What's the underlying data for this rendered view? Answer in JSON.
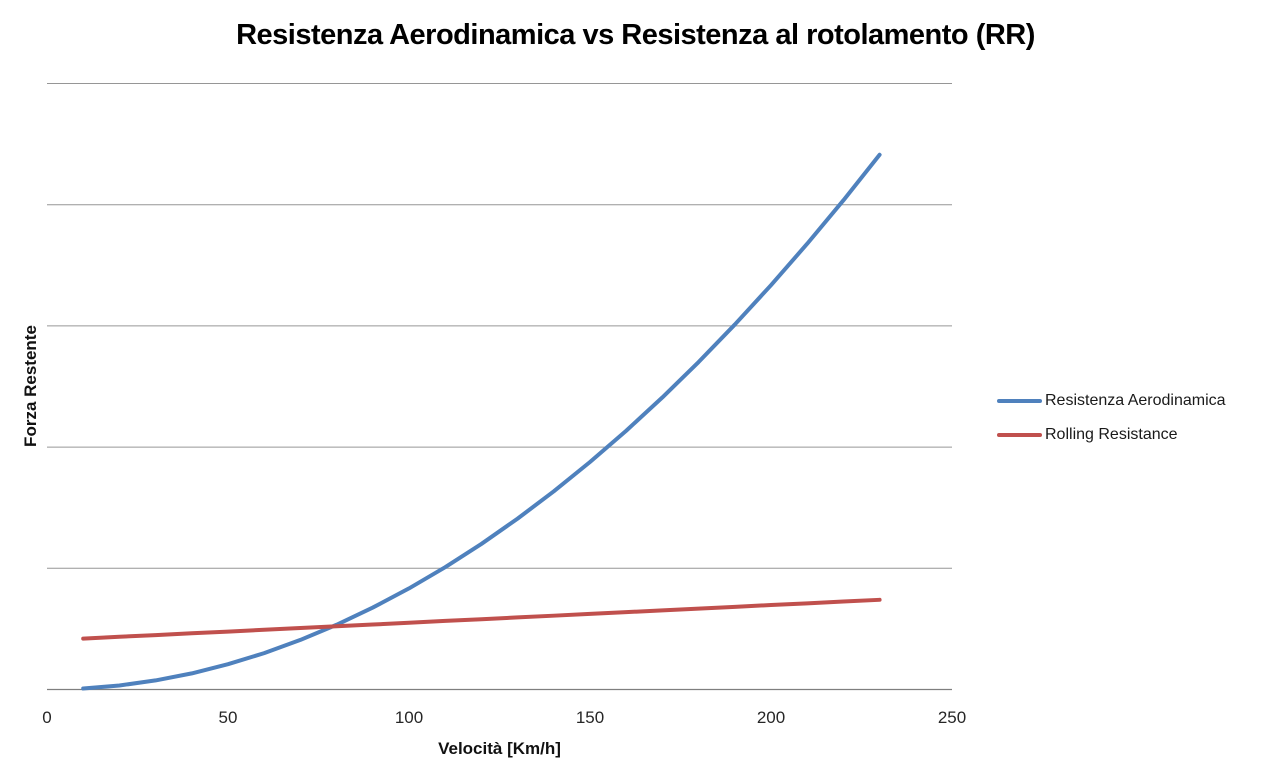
{
  "chart_data": {
    "type": "line",
    "title": "Resistenza Aerodinamica vs Resistenza al rotolamento (RR)",
    "xlabel": "Velocità [Km/h]",
    "ylabel": "Forza Restente",
    "xlim": [
      0,
      250
    ],
    "ylim": [
      0,
      5
    ],
    "x_ticks": [
      0,
      50,
      100,
      150,
      200,
      250
    ],
    "y_tick_labels": "hidden",
    "y_gridline_step": 1,
    "grid": "horizontal",
    "legend_position": "right",
    "x": [
      10,
      20,
      30,
      40,
      50,
      60,
      70,
      80,
      90,
      100,
      110,
      120,
      130,
      140,
      150,
      160,
      170,
      180,
      190,
      200,
      210,
      220,
      230
    ],
    "series": [
      {
        "name": "Resistenza Aerodinamica",
        "color": "#4F81BD",
        "values": [
          0.008,
          0.033,
          0.075,
          0.133,
          0.209,
          0.3,
          0.409,
          0.534,
          0.676,
          0.834,
          1.009,
          1.201,
          1.41,
          1.635,
          1.877,
          2.135,
          2.41,
          2.702,
          3.011,
          3.336,
          3.678,
          4.036,
          4.412
        ]
      },
      {
        "name": "Rolling Resistance",
        "color": "#C0504D",
        "values": [
          0.42,
          0.435,
          0.449,
          0.464,
          0.478,
          0.493,
          0.507,
          0.522,
          0.536,
          0.551,
          0.566,
          0.58,
          0.595,
          0.609,
          0.624,
          0.638,
          0.653,
          0.667,
          0.682,
          0.697,
          0.711,
          0.726,
          0.74
        ]
      }
    ]
  },
  "colors": {
    "gridline": "#969696",
    "axis_line": "#7F7F7F",
    "tick_label": "#262626"
  }
}
